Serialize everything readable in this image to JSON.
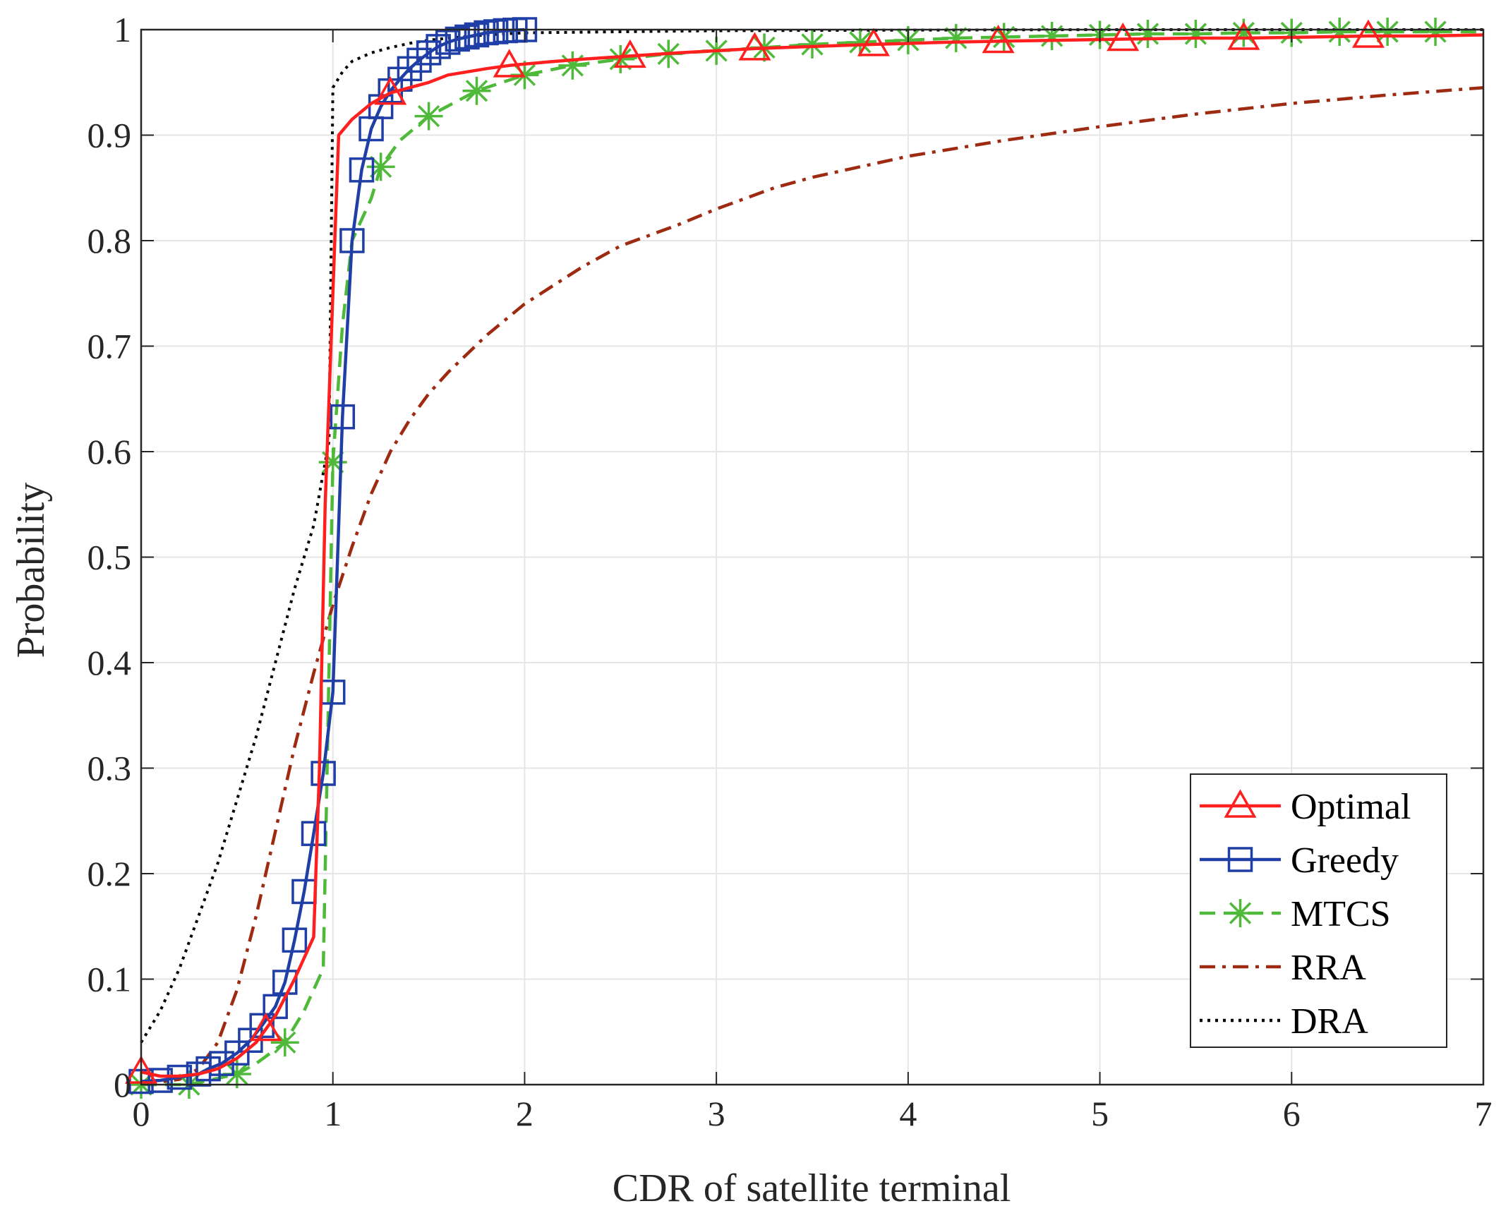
{
  "chart_data": {
    "type": "line",
    "title": "",
    "xlabel": "CDR of satellite terminal",
    "ylabel": "Probability",
    "xlim": [
      0,
      7
    ],
    "ylim": [
      0,
      1
    ],
    "xticks": [
      0,
      1,
      2,
      3,
      4,
      5,
      6,
      7
    ],
    "xtick_labels": [
      "0",
      "1",
      "2",
      "3",
      "4",
      "5",
      "6",
      "7"
    ],
    "yticks": [
      0,
      0.1,
      0.2,
      0.3,
      0.4,
      0.5,
      0.6,
      0.7,
      0.8,
      0.9,
      1
    ],
    "ytick_labels": [
      "0",
      "0.1",
      "0.2",
      "0.3",
      "0.4",
      "0.5",
      "0.6",
      "0.7",
      "0.8",
      "0.9",
      "1"
    ],
    "grid": true,
    "legend_position": "bottom-right",
    "series": [
      {
        "name": "Optimal",
        "color": "#ff1f1f",
        "line_style": "solid",
        "marker": "triangle",
        "x": [
          0,
          0.1,
          0.2,
          0.3,
          0.4,
          0.5,
          0.6,
          0.7,
          0.8,
          0.9,
          0.93,
          0.96,
          1.0,
          1.03,
          1.1,
          1.2,
          1.3,
          1.4,
          1.5,
          1.6,
          1.7,
          1.8,
          1.92,
          2.1,
          2.3,
          2.55,
          2.8,
          3.0,
          3.2,
          3.5,
          3.82,
          4.2,
          4.47,
          4.8,
          5.12,
          5.5,
          5.75,
          6.1,
          6.4,
          6.7,
          7.0
        ],
        "y": [
          0.012,
          0.008,
          0.008,
          0.01,
          0.015,
          0.025,
          0.04,
          0.065,
          0.1,
          0.14,
          0.3,
          0.55,
          0.75,
          0.9,
          0.915,
          0.93,
          0.94,
          0.945,
          0.95,
          0.957,
          0.96,
          0.963,
          0.966,
          0.969,
          0.972,
          0.975,
          0.978,
          0.98,
          0.982,
          0.984,
          0.986,
          0.988,
          0.989,
          0.99,
          0.991,
          0.992,
          0.992,
          0.993,
          0.994,
          0.994,
          0.995
        ],
        "marker_x": [
          0,
          0.65,
          1.3,
          1.92,
          2.55,
          3.2,
          3.82,
          4.47,
          5.12,
          5.75,
          6.4
        ]
      },
      {
        "name": "Greedy",
        "color": "#1f3fa6",
        "line_style": "solid",
        "marker": "square",
        "x": [
          0,
          0.1,
          0.2,
          0.3,
          0.35,
          0.42,
          0.5,
          0.57,
          0.63,
          0.7,
          0.75,
          0.8,
          0.85,
          0.9,
          0.95,
          1.0,
          1.05,
          1.1,
          1.15,
          1.2,
          1.25,
          1.3,
          1.35,
          1.4,
          1.45,
          1.5,
          1.55,
          1.6,
          1.65,
          1.7,
          1.75,
          1.8,
          1.85,
          1.9,
          1.95,
          2.0
        ],
        "y": [
          0.003,
          0.004,
          0.007,
          0.01,
          0.015,
          0.02,
          0.03,
          0.042,
          0.056,
          0.074,
          0.097,
          0.137,
          0.183,
          0.238,
          0.295,
          0.372,
          0.633,
          0.8,
          0.867,
          0.906,
          0.927,
          0.942,
          0.953,
          0.963,
          0.971,
          0.978,
          0.984,
          0.988,
          0.991,
          0.993,
          0.995,
          0.997,
          0.998,
          0.999,
          0.9995,
          1.0
        ],
        "marker_x": [
          0,
          0.1,
          0.2,
          0.3,
          0.35,
          0.42,
          0.5,
          0.57,
          0.63,
          0.7,
          0.75,
          0.8,
          0.85,
          0.9,
          0.95,
          1.0,
          1.05,
          1.1,
          1.15,
          1.2,
          1.25,
          1.3,
          1.35,
          1.4,
          1.45,
          1.5,
          1.55,
          1.6,
          1.65,
          1.7,
          1.75,
          1.8,
          1.85,
          1.9,
          1.95,
          2.0
        ]
      },
      {
        "name": "MTCS",
        "color": "#4fba3a",
        "line_style": "dashed",
        "marker": "star",
        "x": [
          0,
          0.25,
          0.5,
          0.6,
          0.75,
          0.85,
          0.9,
          0.95,
          0.97,
          1.0,
          1.05,
          1.1,
          1.2,
          1.25,
          1.35,
          1.5,
          1.75,
          2.0,
          2.25,
          2.5,
          2.75,
          3.0,
          3.25,
          3.5,
          3.75,
          4.0,
          4.25,
          4.5,
          4.75,
          5.0,
          5.25,
          5.5,
          5.75,
          6.0,
          6.25,
          6.5,
          6.75,
          7.0
        ],
        "y": [
          0.0,
          0.0,
          0.01,
          0.02,
          0.04,
          0.07,
          0.09,
          0.11,
          0.3,
          0.59,
          0.72,
          0.8,
          0.84,
          0.87,
          0.895,
          0.918,
          0.942,
          0.957,
          0.966,
          0.972,
          0.977,
          0.98,
          0.983,
          0.986,
          0.988,
          0.99,
          0.992,
          0.993,
          0.994,
          0.995,
          0.996,
          0.996,
          0.997,
          0.997,
          0.998,
          0.998,
          0.998,
          0.998
        ],
        "marker_x": [
          0,
          0.25,
          0.5,
          0.75,
          1.0,
          1.25,
          1.5,
          1.75,
          2.0,
          2.25,
          2.5,
          2.75,
          3.0,
          3.25,
          3.5,
          3.75,
          4.0,
          4.25,
          4.5,
          4.75,
          5.0,
          5.25,
          5.5,
          5.75,
          6.0,
          6.25,
          6.5,
          6.75
        ]
      },
      {
        "name": "RRA",
        "color": "#9e2a12",
        "line_style": "dash-dot",
        "marker": "none",
        "x": [
          0,
          0.2,
          0.3,
          0.4,
          0.5,
          0.6,
          0.7,
          0.8,
          0.9,
          1.0,
          1.1,
          1.2,
          1.3,
          1.4,
          1.5,
          1.6,
          1.8,
          2.0,
          2.3,
          2.5,
          2.8,
          3.0,
          3.3,
          3.5,
          4.0,
          4.5,
          5.0,
          5.5,
          6.0,
          6.5,
          7.0
        ],
        "y": [
          0.0,
          0.005,
          0.015,
          0.04,
          0.09,
          0.16,
          0.24,
          0.32,
          0.39,
          0.455,
          0.51,
          0.56,
          0.6,
          0.63,
          0.655,
          0.675,
          0.71,
          0.74,
          0.775,
          0.795,
          0.815,
          0.83,
          0.85,
          0.86,
          0.88,
          0.895,
          0.908,
          0.92,
          0.93,
          0.938,
          0.945
        ],
        "marker_x": []
      },
      {
        "name": "DRA",
        "color": "#000000",
        "line_style": "dotted",
        "marker": "none",
        "x": [
          0,
          0.1,
          0.2,
          0.3,
          0.4,
          0.5,
          0.6,
          0.7,
          0.8,
          0.9,
          0.95,
          0.98,
          1.0,
          1.05,
          1.1,
          1.2,
          1.3,
          1.4,
          1.5,
          1.6,
          1.8,
          2.0,
          2.5,
          3.0,
          4.0,
          5.0,
          6.0,
          7.0
        ],
        "y": [
          0.04,
          0.07,
          0.11,
          0.16,
          0.21,
          0.27,
          0.33,
          0.4,
          0.47,
          0.53,
          0.58,
          0.61,
          0.945,
          0.96,
          0.97,
          0.978,
          0.983,
          0.987,
          0.99,
          0.992,
          0.995,
          0.997,
          0.998,
          0.999,
          0.9995,
          1.0,
          1.0,
          1.0
        ],
        "marker_x": []
      }
    ]
  }
}
